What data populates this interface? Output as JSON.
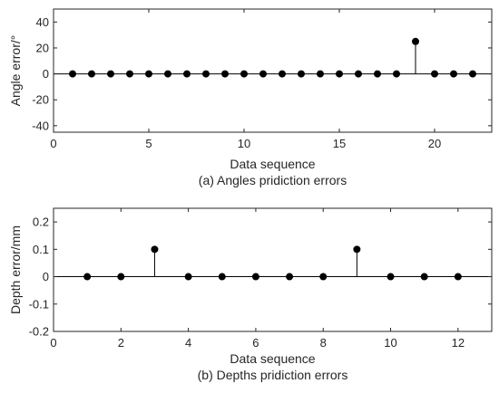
{
  "chart_data": [
    {
      "type": "stem",
      "x": [
        1,
        2,
        3,
        4,
        5,
        6,
        7,
        8,
        9,
        10,
        11,
        12,
        13,
        14,
        15,
        16,
        17,
        18,
        19,
        20,
        21,
        22
      ],
      "y": [
        0,
        0,
        0,
        0,
        0,
        0,
        0,
        0,
        0,
        0,
        0,
        0,
        0,
        0,
        0,
        0,
        0,
        0,
        25,
        0,
        0,
        0
      ],
      "xlabel": "Data sequence",
      "ylabel": "Angle error/°",
      "caption": "(a) Angles pridiction errors",
      "xlim": [
        0,
        23
      ],
      "ylim": [
        -45,
        50
      ],
      "xticks": [
        "0",
        "5",
        "10",
        "15",
        "20"
      ],
      "xtick_values": [
        0,
        5,
        10,
        15,
        20
      ],
      "yticks": [
        "-40",
        "-20",
        "0",
        "20",
        "40"
      ],
      "ytick_values": [
        -40,
        -20,
        0,
        20,
        40
      ],
      "grid": false,
      "baseline": 0,
      "color": "#000000"
    },
    {
      "type": "stem",
      "x": [
        1,
        2,
        3,
        4,
        5,
        6,
        7,
        8,
        9,
        10,
        11,
        12
      ],
      "y": [
        0,
        0,
        0.1,
        0,
        0,
        0,
        0,
        0,
        0.1,
        0,
        0,
        0
      ],
      "xlabel": "Data sequence",
      "ylabel": "Depth error/mm",
      "caption": "(b) Depths pridiction errors",
      "xlim": [
        0,
        13
      ],
      "ylim": [
        -0.2,
        0.25
      ],
      "xticks": [
        "0",
        "2",
        "4",
        "6",
        "8",
        "10",
        "12"
      ],
      "xtick_values": [
        0,
        2,
        4,
        6,
        8,
        10,
        12
      ],
      "yticks": [
        "-0.2",
        "-0.1",
        "0",
        "0.1",
        "0.2"
      ],
      "ytick_values": [
        -0.2,
        -0.1,
        0,
        0.1,
        0.2
      ],
      "grid": false,
      "baseline": 0,
      "color": "#000000"
    }
  ]
}
